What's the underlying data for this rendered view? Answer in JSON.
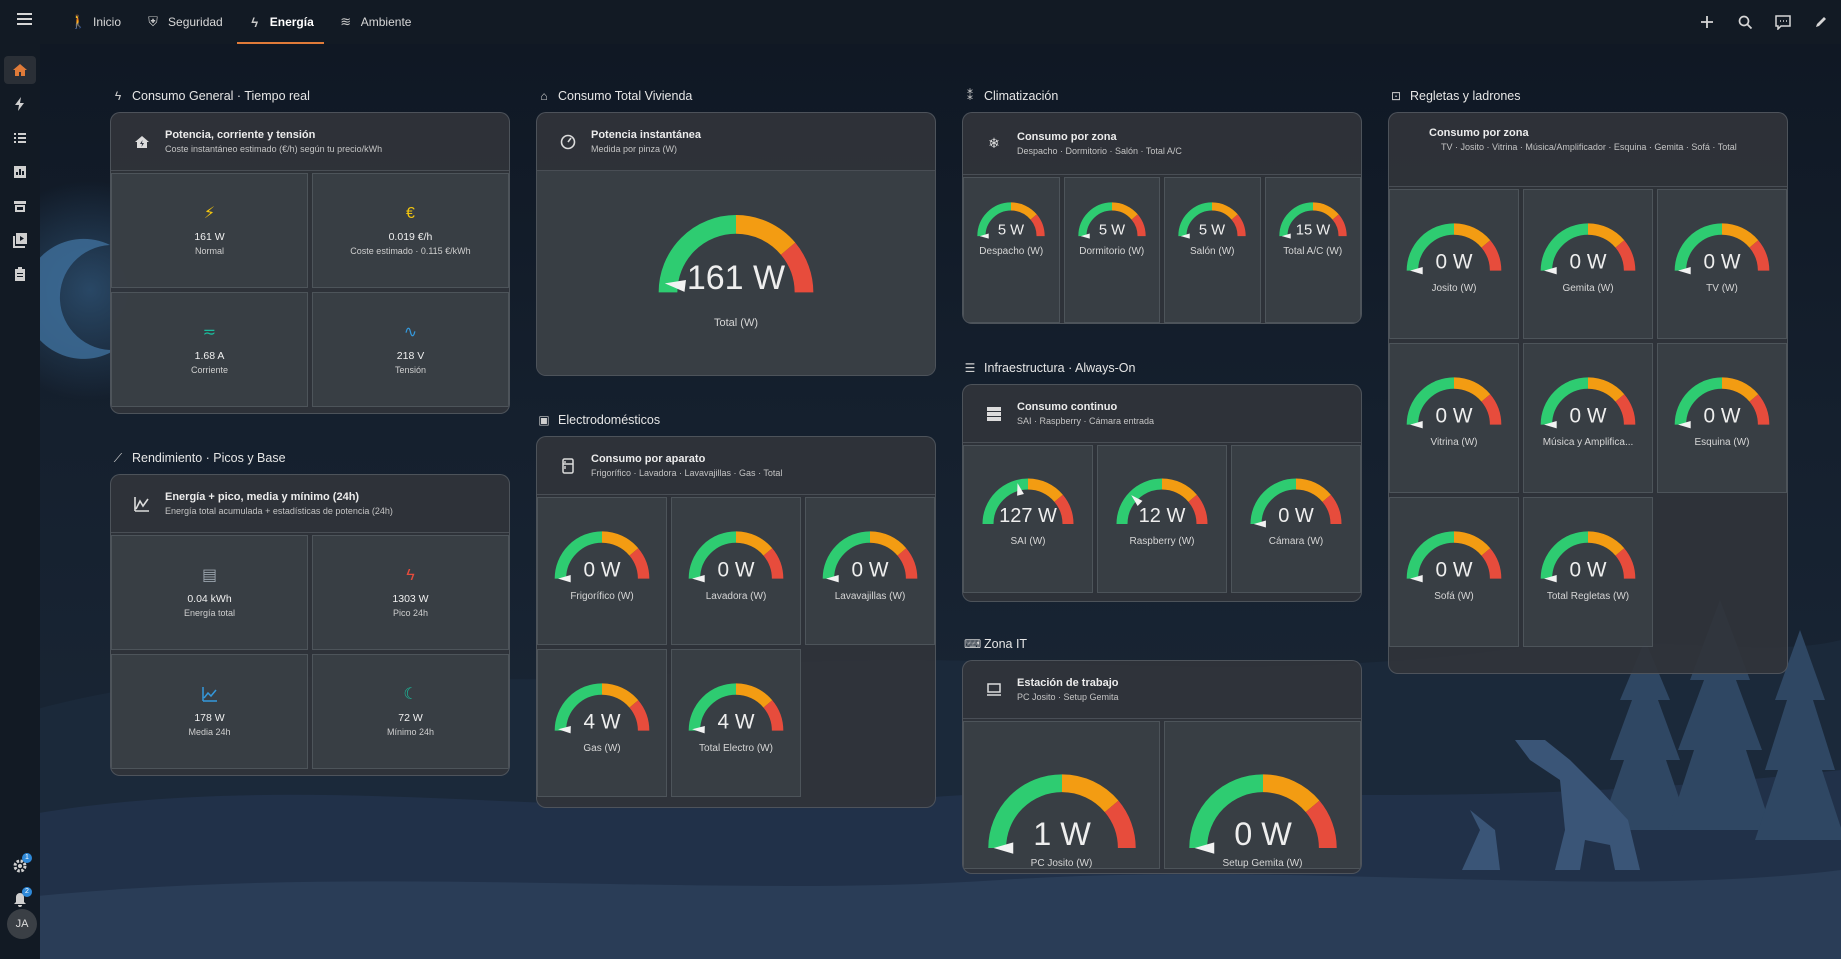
{
  "topbar": {
    "tabs": [
      {
        "label": "Inicio",
        "icon": "walk-icon",
        "glyph": "🚶"
      },
      {
        "label": "Seguridad",
        "icon": "shield-icon",
        "glyph": "⛨"
      },
      {
        "label": "Energía",
        "icon": "lightning-icon",
        "glyph": "ϟ",
        "active": true
      },
      {
        "label": "Ambiente",
        "icon": "weather-icon",
        "glyph": "≋"
      }
    ],
    "actions": [
      "plus-icon",
      "search-icon",
      "assist-icon",
      "edit-icon"
    ]
  },
  "sidebar": {
    "items": [
      "home-icon",
      "lightning-icon",
      "list-icon",
      "chart-icon",
      "hacs-icon",
      "media-icon",
      "clipboard-icon"
    ],
    "settings_badge": "1",
    "notifications_badge": "2",
    "avatar_initials": "JA"
  },
  "colors": {
    "accent": "#e07b39",
    "green": "#2ecc71",
    "orange": "#f39c12",
    "red": "#e74c3c",
    "yellow": "#f1c40f",
    "cyan": "#1abc9c",
    "blue": "#3498db"
  },
  "consumo_general": {
    "title": "Consumo General · Tiempo real",
    "card_title": "Potencia, corriente y tensión",
    "card_sub": "Coste instantáneo estimado (€/h) según tu precio/kWh",
    "tiles": [
      {
        "icon": "flash-icon",
        "glyph": "⚡",
        "color": "#f1c40f",
        "value": "161 W",
        "label": "Normal"
      },
      {
        "icon": "euro-icon",
        "glyph": "€",
        "color": "#f1c40f",
        "value": "0.019 €/h",
        "label": "Coste estimado · 0.115 €/kWh"
      },
      {
        "icon": "current-ac-icon",
        "glyph": "≂",
        "color": "#1abc9c",
        "value": "1.68 A",
        "label": "Corriente"
      },
      {
        "icon": "sine-wave-icon",
        "glyph": "∿",
        "color": "#3498db",
        "value": "218 V",
        "label": "Tensión"
      }
    ]
  },
  "rendimiento": {
    "title": "Rendimiento · Picos y Base",
    "card_title": "Energía + pico, media y mínimo (24h)",
    "card_sub": "Energía total acumulada + estadísticas de potencia (24h)",
    "tiles": [
      {
        "icon": "meter-icon",
        "glyph": "▤",
        "color": "#9aa3ad",
        "value": "0.04 kWh",
        "label": "Energía total"
      },
      {
        "icon": "flash-alert-icon",
        "glyph": "ϟ",
        "color": "#e74c3c",
        "value": "1303 W",
        "label": "Pico 24h"
      },
      {
        "icon": "chart-line-icon",
        "glyph": "📈",
        "color": "#3498db",
        "value": "178 W",
        "label": "Media 24h"
      },
      {
        "icon": "moon-icon",
        "glyph": "☾",
        "color": "#1abc9c",
        "value": "72 W",
        "label": "Mínimo 24h"
      }
    ]
  },
  "consumo_total": {
    "title": "Consumo Total Vivienda",
    "card_title": "Potencia instantánea",
    "card_sub": "Medida por pinza (W)",
    "gauge": {
      "value": 161,
      "display": "161 W",
      "label": "Total (W)",
      "level": 0.04
    }
  },
  "electrodomesticos": {
    "title": "Electrodomésticos",
    "card_title": "Consumo por aparato",
    "card_sub": "Frigorífico · Lavadora · Lavavajillas · Gas · Total",
    "gauges": [
      {
        "display": "0 W",
        "label": "Frigorífico (W)",
        "level": 0
      },
      {
        "display": "0 W",
        "label": "Lavadora (W)",
        "level": 0
      },
      {
        "display": "0 W",
        "label": "Lavavajillas (W)",
        "level": 0
      },
      {
        "display": "4 W",
        "label": "Gas (W)",
        "level": 0.01
      },
      {
        "display": "4 W",
        "label": "Total Electro (W)",
        "level": 0.01
      }
    ]
  },
  "climatizacion": {
    "title": "Climatización",
    "card_title": "Consumo por zona",
    "card_sub": "Despacho · Dormitorio · Salón · Total A/C",
    "gauges": [
      {
        "display": "5 W",
        "label": "Despacho (W)",
        "level": 0
      },
      {
        "display": "5 W",
        "label": "Dormitorio (W)",
        "level": 0
      },
      {
        "display": "5 W",
        "label": "Salón (W)",
        "level": 0
      },
      {
        "display": "15 W",
        "label": "Total A/C (W)",
        "level": 0
      }
    ]
  },
  "infraestructura": {
    "title": "Infraestructura · Always-On",
    "card_title": "Consumo continuo",
    "card_sub": "SAI · Raspberry · Cámara entrada",
    "gauges": [
      {
        "display": "127 W",
        "label": "SAI (W)",
        "level": 0.42
      },
      {
        "display": "12 W",
        "label": "Raspberry (W)",
        "level": 0.24
      },
      {
        "display": "0 W",
        "label": "Cámara (W)",
        "level": 0
      }
    ]
  },
  "zona_it": {
    "title": "Zona IT",
    "card_title": "Estación de trabajo",
    "card_sub": "PC Josito · Setup Gemita",
    "gauges": [
      {
        "display": "1 W",
        "label": "PC Josito (W)",
        "level": 0
      },
      {
        "display": "0 W",
        "label": "Setup Gemita (W)",
        "level": 0
      }
    ]
  },
  "regletas": {
    "title": "Regletas y ladrones",
    "card_title": "Consumo por zona",
    "card_sub": "TV · Josito · Vitrina · Música/Amplificador · Esquina · Gemita · Sofá · Total",
    "gauges": [
      {
        "display": "0 W",
        "label": "Josito (W)",
        "level": 0
      },
      {
        "display": "0 W",
        "label": "Gemita (W)",
        "level": 0
      },
      {
        "display": "0 W",
        "label": "TV (W)",
        "level": 0
      },
      {
        "display": "0 W",
        "label": "Vitrina (W)",
        "level": 0
      },
      {
        "display": "0 W",
        "label": "Música y Amplifica...",
        "level": 0
      },
      {
        "display": "0 W",
        "label": "Esquina (W)",
        "level": 0
      },
      {
        "display": "0 W",
        "label": "Sofá (W)",
        "level": 0
      },
      {
        "display": "0 W",
        "label": "Total Regletas (W)",
        "level": 0
      }
    ]
  }
}
